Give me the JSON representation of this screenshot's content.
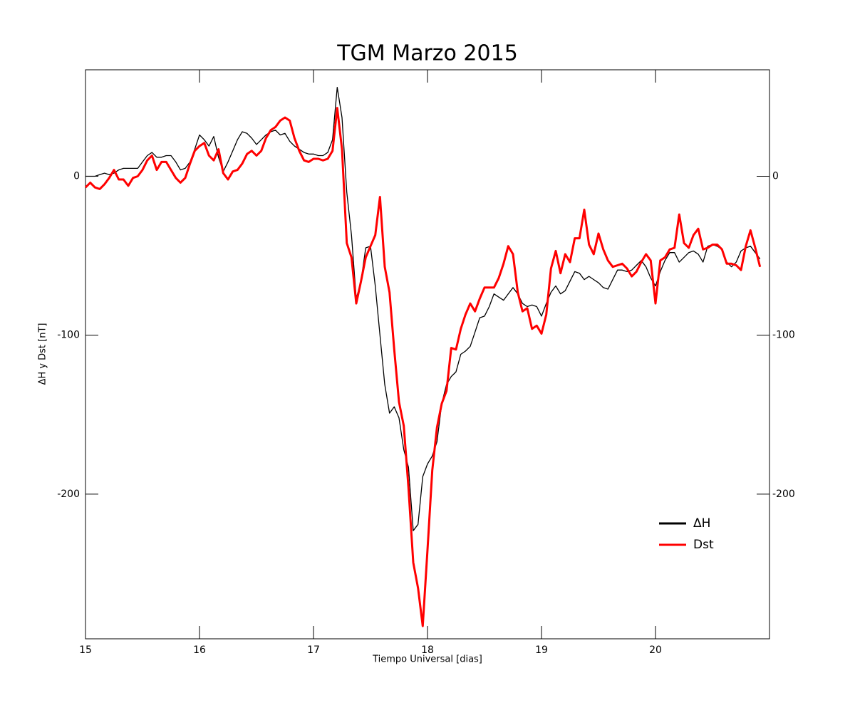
{
  "chart_data": {
    "type": "line",
    "title": "TGM Marzo 2015",
    "x_label": "Tiempo Universal [dias]",
    "y_label": "ΔH y Dst [nT]",
    "xlim": [
      15,
      21
    ],
    "xticks": [
      15,
      16,
      17,
      18,
      19,
      20
    ],
    "ylim": [
      -291,
      67
    ],
    "yticks": [
      -200,
      -100,
      0
    ],
    "y2ticks": [
      -200,
      -100,
      0
    ],
    "legend": "lower right",
    "x": [
      15,
      15.042,
      15.083,
      15.125,
      15.167,
      15.208,
      15.25,
      15.292,
      15.333,
      15.375,
      15.417,
      15.458,
      15.5,
      15.542,
      15.583,
      15.625,
      15.667,
      15.708,
      15.75,
      15.792,
      15.833,
      15.875,
      15.917,
      15.958,
      16,
      16.042,
      16.083,
      16.125,
      16.167,
      16.208,
      16.25,
      16.292,
      16.333,
      16.375,
      16.417,
      16.458,
      16.5,
      16.542,
      16.583,
      16.625,
      16.667,
      16.708,
      16.75,
      16.792,
      16.833,
      16.875,
      16.917,
      16.958,
      17,
      17.042,
      17.083,
      17.125,
      17.167,
      17.208,
      17.25,
      17.292,
      17.333,
      17.375,
      17.417,
      17.458,
      17.5,
      17.542,
      17.583,
      17.625,
      17.667,
      17.708,
      17.75,
      17.792,
      17.833,
      17.875,
      17.917,
      17.958,
      18,
      18.042,
      18.083,
      18.125,
      18.167,
      18.208,
      18.25,
      18.292,
      18.333,
      18.375,
      18.417,
      18.458,
      18.5,
      18.542,
      18.583,
      18.625,
      18.667,
      18.708,
      18.75,
      18.792,
      18.833,
      18.875,
      18.917,
      18.958,
      19,
      19.042,
      19.083,
      19.125,
      19.167,
      19.208,
      19.25,
      19.292,
      19.333,
      19.375,
      19.417,
      19.458,
      19.5,
      19.542,
      19.583,
      19.625,
      19.667,
      19.708,
      19.75,
      19.792,
      19.833,
      19.875,
      19.917,
      19.958,
      20,
      20.042,
      20.083,
      20.125,
      20.167,
      20.208,
      20.25,
      20.292,
      20.333,
      20.375,
      20.417,
      20.458,
      20.5,
      20.542,
      20.583,
      20.625,
      20.667,
      20.708,
      20.75,
      20.792,
      20.833,
      20.875,
      20.917
    ],
    "series": [
      {
        "name": "ΔH",
        "color": "#000000",
        "width": 1.3,
        "values": [
          0,
          0,
          0,
          1,
          2,
          1,
          2,
          4,
          5,
          5,
          5,
          5,
          9,
          13,
          15,
          12,
          12,
          13,
          13,
          9,
          4,
          5,
          9,
          17,
          26,
          23,
          19,
          25,
          12,
          3,
          9,
          16,
          23,
          28,
          27,
          24,
          20,
          23,
          26,
          28,
          29,
          26,
          27,
          22,
          19,
          17,
          15,
          14,
          14,
          13,
          13,
          15,
          23,
          56,
          37,
          -10,
          -37,
          -77,
          -66,
          -45,
          -44,
          -69,
          -100,
          -131,
          -149,
          -145,
          -152,
          -172,
          -183,
          -223,
          -219,
          -189,
          -181,
          -176,
          -167,
          -143,
          -131,
          -126,
          -123,
          -112,
          -110,
          -107,
          -98,
          -89,
          -88,
          -82,
          -74,
          -76,
          -78,
          -74,
          -70,
          -74,
          -80,
          -82,
          -81,
          -82,
          -88,
          -80,
          -73,
          -69,
          -74,
          -72,
          -66,
          -60,
          -61,
          -65,
          -63,
          -65,
          -67,
          -70,
          -71,
          -65,
          -59,
          -59,
          -60,
          -59,
          -56,
          -53,
          -57,
          -64,
          -69,
          -60,
          -53,
          -48,
          -48,
          -54,
          -51,
          -48,
          -47,
          -49,
          -54,
          -44,
          -43,
          -44,
          -46,
          -54,
          -57,
          -54,
          -47,
          -45,
          -44,
          -48,
          -52
        ]
      },
      {
        "name": "Dst",
        "color": "#ff0000",
        "width": 3,
        "values": [
          -7,
          -4,
          -7,
          -8,
          -5,
          -1,
          4,
          -2,
          -2,
          -6,
          -1,
          0,
          4,
          10,
          13,
          4,
          9,
          9,
          4,
          -1,
          -4,
          -1,
          8,
          16,
          19,
          21,
          13,
          10,
          17,
          2,
          -2,
          3,
          4,
          8,
          14,
          16,
          13,
          16,
          24,
          29,
          31,
          35,
          37,
          35,
          24,
          16,
          10,
          9,
          11,
          11,
          10,
          11,
          16,
          43,
          17,
          -42,
          -51,
          -80,
          -66,
          -51,
          -44,
          -37,
          -13,
          -57,
          -73,
          -109,
          -142,
          -157,
          -196,
          -243,
          -259,
          -283,
          -235,
          -185,
          -158,
          -143,
          -135,
          -108,
          -109,
          -96,
          -87,
          -80,
          -85,
          -77,
          -70,
          -70,
          -70,
          -64,
          -55,
          -44,
          -49,
          -73,
          -85,
          -83,
          -96,
          -94,
          -99,
          -87,
          -58,
          -47,
          -61,
          -49,
          -54,
          -39,
          -39,
          -21,
          -43,
          -49,
          -36,
          -46,
          -53,
          -57,
          -56,
          -55,
          -58,
          -63,
          -60,
          -54,
          -49,
          -53,
          -80,
          -53,
          -51,
          -46,
          -45,
          -24,
          -42,
          -45,
          -37,
          -33,
          -46,
          -45,
          -43,
          -43,
          -46,
          -55,
          -55,
          -56,
          -59,
          -44,
          -34,
          -45,
          -57
        ]
      }
    ]
  }
}
